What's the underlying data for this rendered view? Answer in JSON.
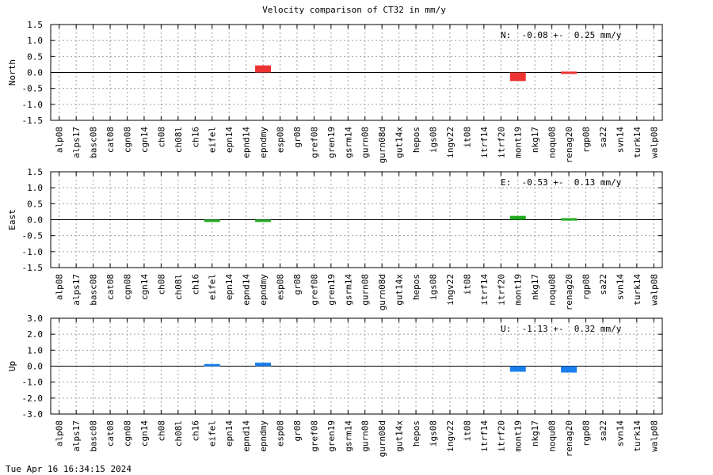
{
  "chart_data": {
    "type": "bar",
    "title": "Velocity comparison of CT32 in mm/y",
    "categories": [
      "alp08",
      "alps17",
      "basc08",
      "cat08",
      "cgn08",
      "cgn14",
      "ch08",
      "ch08l",
      "ch16",
      "eifel",
      "epn14",
      "epnd14",
      "epndmy",
      "esp08",
      "gr08",
      "gref08",
      "gren19",
      "gsrm14",
      "gurn08",
      "gurn08d",
      "gut14x",
      "hepos",
      "igs08",
      "ingv22",
      "it08",
      "itrf14",
      "itrf20",
      "mont19",
      "nkg17",
      "noqu08",
      "renag20",
      "rgp08",
      "sa22",
      "svn14",
      "turk14",
      "walp08"
    ],
    "panels": [
      {
        "name": "North",
        "ylabel": "North",
        "color": "#ee3333",
        "ylim": [
          -1.5,
          1.5
        ],
        "yticks": [
          "1.5",
          "1.0",
          "0.5",
          "0.0",
          "-0.5",
          "-1.0",
          "-1.5"
        ],
        "ytick_values": [
          1.5,
          1.0,
          0.5,
          0.0,
          -0.5,
          -1.0,
          -1.5
        ],
        "annotation": "N:  -0.08 +-  0.25 mm/y",
        "values": [
          null,
          null,
          null,
          null,
          null,
          null,
          null,
          null,
          null,
          null,
          null,
          null,
          0.22,
          null,
          null,
          null,
          null,
          null,
          null,
          null,
          null,
          null,
          null,
          null,
          null,
          null,
          null,
          -0.27,
          null,
          null,
          -0.02,
          null,
          null,
          null,
          null,
          null
        ]
      },
      {
        "name": "East",
        "ylabel": "East",
        "color": "#22aa22",
        "ylim": [
          -1.5,
          1.5
        ],
        "yticks": [
          "1.5",
          "1.0",
          "0.5",
          "0.0",
          "-0.5",
          "-1.0",
          "-1.5"
        ],
        "ytick_values": [
          1.5,
          1.0,
          0.5,
          0.0,
          -0.5,
          -1.0,
          -1.5
        ],
        "annotation": "E:  -0.53 +-  0.13 mm/y",
        "values": [
          null,
          null,
          null,
          null,
          null,
          null,
          null,
          null,
          null,
          -0.07,
          null,
          null,
          -0.07,
          null,
          null,
          null,
          null,
          null,
          null,
          null,
          null,
          null,
          null,
          null,
          null,
          null,
          null,
          0.12,
          null,
          null,
          0.02,
          null,
          null,
          null,
          null,
          null
        ]
      },
      {
        "name": "Up",
        "ylabel": "Up",
        "color": "#1a80ee",
        "ylim": [
          -3.0,
          3.0
        ],
        "yticks": [
          "3.0",
          "2.0",
          "1.0",
          "0.0",
          "-1.0",
          "-2.0",
          "-3.0"
        ],
        "ytick_values": [
          3.0,
          2.0,
          1.0,
          0.0,
          -1.0,
          -2.0,
          -3.0
        ],
        "annotation": "U:  -1.13 +-  0.32 mm/y",
        "values": [
          null,
          null,
          null,
          null,
          null,
          null,
          null,
          null,
          null,
          0.12,
          null,
          null,
          0.22,
          null,
          null,
          null,
          null,
          null,
          null,
          null,
          null,
          null,
          null,
          null,
          null,
          null,
          null,
          -0.35,
          null,
          null,
          -0.4,
          null,
          null,
          null,
          null,
          null
        ]
      }
    ],
    "grid": true
  },
  "footer": {
    "timestamp": "Tue Apr 16 16:34:15 2024"
  }
}
